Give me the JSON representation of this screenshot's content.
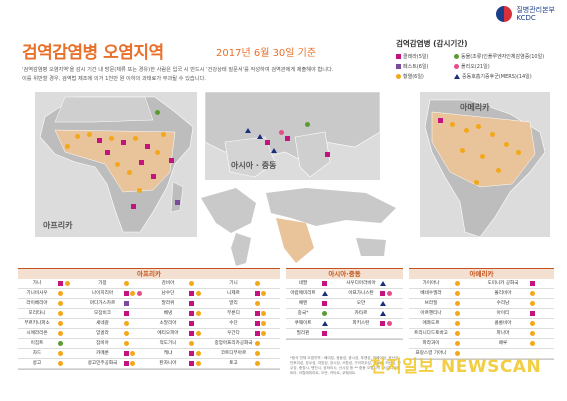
{
  "header": {
    "agency_line1": "질병관리본부",
    "agency_line2": "KCDC",
    "title": "검역감염병 오염지역",
    "subtitle": "2017년 6월 30일 기준",
    "desc_line1": "'검역감염병 오염지역'을 감시 기간 내 방문(체류 또는 경유)한 사람은 입국 시 반드시 '건강상태 질문서'를 작성하여 검역관에게 제출해야 합니다.",
    "desc_line2": "이를 위반할 경우, 검역법 제조에 의거 1천만 원 이하의 과태료가 부과될 수 있습니다."
  },
  "legend": {
    "title": "검역감염병 (감시기간)",
    "items": [
      {
        "label": "콜레라(5일)",
        "color": "#c4127e",
        "shape": "square"
      },
      {
        "label": "동물(조류)인플루엔자인체감염증(10일)",
        "color": "#5a9c2f",
        "shape": "circle"
      },
      {
        "label": "페스트(6일)",
        "color": "#7a4a9c",
        "shape": "square"
      },
      {
        "label": "폴리오(21일)",
        "color": "#e84a8a",
        "shape": "circle"
      },
      {
        "label": "황열(6일)",
        "color": "#f3a81a",
        "shape": "circle"
      },
      {
        "label": "중동호흡기증후군(MERS)(14일)",
        "color": "#1a2f7a",
        "shape": "triangle"
      }
    ]
  },
  "maps": {
    "africa_label": "아프리카",
    "me_label": "아시아 · 중동",
    "americas_label": "아메리카"
  },
  "tables": {
    "africa": {
      "header": "아프리카",
      "rows": [
        [
          {
            "name": "가나",
            "marks": [
              "square:#c4127e",
              "circle:#f3a81a"
            ]
          },
          {
            "name": "가봉",
            "marks": [
              "circle:#f3a81a"
            ]
          },
          {
            "name": "감비아",
            "marks": [
              "circle:#f3a81a"
            ]
          },
          {
            "name": "기니",
            "marks": [
              "circle:#f3a81a"
            ]
          }
        ],
        [
          {
            "name": "기니비사우",
            "marks": [
              "circle:#f3a81a"
            ]
          },
          {
            "name": "나이지리아",
            "marks": [
              "square:#c4127e",
              "circle:#f3a81a",
              "circle:#e84a8a"
            ]
          },
          {
            "name": "남수단",
            "marks": [
              "square:#c4127e",
              "circle:#f3a81a"
            ]
          },
          {
            "name": "니제르",
            "marks": [
              "square:#c4127e",
              "circle:#f3a81a"
            ]
          }
        ],
        [
          {
            "name": "라이베리아",
            "marks": [
              "circle:#f3a81a"
            ]
          },
          {
            "name": "마다가스카르",
            "marks": [
              "square:#7a4a9c"
            ]
          },
          {
            "name": "말라위",
            "marks": [
              "square:#c4127e"
            ]
          },
          {
            "name": "말리",
            "marks": [
              "circle:#f3a81a"
            ]
          }
        ],
        [
          {
            "name": "모리타니",
            "marks": [
              "circle:#f3a81a"
            ]
          },
          {
            "name": "모잠비크",
            "marks": [
              "square:#c4127e"
            ]
          },
          {
            "name": "베냉",
            "marks": [
              "square:#c4127e",
              "circle:#f3a81a"
            ]
          },
          {
            "name": "부룬디",
            "marks": [
              "square:#c4127e",
              "circle:#f3a81a"
            ]
          }
        ],
        [
          {
            "name": "부르키나파소",
            "marks": [
              "circle:#f3a81a"
            ]
          },
          {
            "name": "세네갈",
            "marks": [
              "circle:#f3a81a"
            ]
          },
          {
            "name": "소말리아",
            "marks": [
              "square:#c4127e"
            ]
          },
          {
            "name": "수단",
            "marks": [
              "square:#c4127e",
              "circle:#f3a81a"
            ]
          }
        ],
        [
          {
            "name": "시에라리온",
            "marks": [
              "circle:#f3a81a"
            ]
          },
          {
            "name": "앙골라",
            "marks": [
              "circle:#f3a81a"
            ]
          },
          {
            "name": "에티오피아",
            "marks": [
              "square:#c4127e",
              "circle:#f3a81a"
            ]
          },
          {
            "name": "우간다",
            "marks": [
              "square:#c4127e",
              "circle:#f3a81a"
            ]
          }
        ],
        [
          {
            "name": "이집트",
            "marks": [
              "circle:#5a9c2f"
            ]
          },
          {
            "name": "잠비아",
            "marks": [
              "circle:#f3a81a"
            ]
          },
          {
            "name": "적도기니",
            "marks": [
              "circle:#f3a81a"
            ]
          },
          {
            "name": "중앙아프리카공화국",
            "marks": [
              "circle:#f3a81a"
            ]
          }
        ],
        [
          {
            "name": "차드",
            "marks": [
              "circle:#f3a81a"
            ]
          },
          {
            "name": "카메룬",
            "marks": [
              "square:#c4127e",
              "circle:#f3a81a"
            ]
          },
          {
            "name": "케냐",
            "marks": [
              "square:#c4127e",
              "circle:#f3a81a"
            ]
          },
          {
            "name": "코트디부아르",
            "marks": [
              "circle:#f3a81a"
            ]
          }
        ],
        [
          {
            "name": "콩고",
            "marks": [
              "circle:#f3a81a"
            ]
          },
          {
            "name": "콩고민주공화국",
            "marks": [
              "square:#c4127e",
              "circle:#f3a81a"
            ]
          },
          {
            "name": "탄자니아",
            "marks": [
              "square:#c4127e",
              "circle:#f3a81a"
            ]
          },
          {
            "name": "토고",
            "marks": [
              "circle:#f3a81a"
            ]
          }
        ]
      ]
    },
    "me": {
      "header": "아시아·중동",
      "rows": [
        [
          {
            "name": "네팔",
            "marks": [
              "square:#c4127e"
            ]
          },
          {
            "name": "사우디아라비아",
            "marks": [
              "triangle:#1a2f7a"
            ]
          }
        ],
        [
          {
            "name": "아랍에미리트",
            "marks": [
              "triangle:#1a2f7a"
            ]
          },
          {
            "name": "아프가니스탄",
            "marks": [
              "square:#c4127e",
              "circle:#e84a8a"
            ]
          }
        ],
        [
          {
            "name": "예멘",
            "marks": [
              "square:#c4127e"
            ]
          },
          {
            "name": "오만",
            "marks": [
              "triangle:#1a2f7a"
            ]
          }
        ],
        [
          {
            "name": "중국*",
            "marks": [
              "circle:#5a9c2f"
            ]
          },
          {
            "name": "카타르",
            "marks": [
              "triangle:#1a2f7a"
            ]
          }
        ],
        [
          {
            "name": "쿠웨이트",
            "marks": [
              "triangle:#1a2f7a"
            ]
          },
          {
            "name": "파키스탄",
            "marks": [
              "square:#c4127e",
              "circle:#e84a8a"
            ]
          }
        ],
        [
          {
            "name": "필리핀",
            "marks": [
              "square:#c4127e"
            ]
          },
          {
            "name": "",
            "marks": []
          }
        ]
      ]
    },
    "americas": {
      "header": "아메리카",
      "rows": [
        [
          {
            "name": "가이아나",
            "marks": [
              "circle:#f3a81a"
            ]
          },
          {
            "name": "도미니카 공화국",
            "marks": [
              "square:#c4127e"
            ]
          }
        ],
        [
          {
            "name": "베네수엘라",
            "marks": [
              "circle:#f3a81a"
            ]
          },
          {
            "name": "볼리비아",
            "marks": [
              "circle:#f3a81a"
            ]
          }
        ],
        [
          {
            "name": "브라질",
            "marks": [
              "circle:#f3a81a"
            ]
          },
          {
            "name": "수리남",
            "marks": [
              "circle:#f3a81a"
            ]
          }
        ],
        [
          {
            "name": "아르헨티나",
            "marks": [
              "circle:#f3a81a"
            ]
          },
          {
            "name": "아이티",
            "marks": [
              "square:#c4127e"
            ]
          }
        ],
        [
          {
            "name": "에콰도르",
            "marks": [
              "circle:#f3a81a"
            ]
          },
          {
            "name": "콜롬비아",
            "marks": [
              "circle:#f3a81a"
            ]
          }
        ],
        [
          {
            "name": "트리니다드토바고",
            "marks": [
              "circle:#f3a81a"
            ]
          },
          {
            "name": "파나마",
            "marks": [
              "circle:#f3a81a"
            ]
          }
        ],
        [
          {
            "name": "파라과이",
            "marks": [
              "circle:#f3a81a"
            ]
          },
          {
            "name": "페루",
            "marks": [
              "circle:#f3a81a"
            ]
          }
        ],
        [
          {
            "name": "프랑스령 기아나",
            "marks": [
              "circle:#f3a81a"
            ]
          },
          {
            "name": "",
            "marks": []
          }
        ]
      ]
    }
  },
  "notes": {
    "text": "*중국 전체 오염지역 : 베이징, 광둥성, 광시성, 푸젠성, 허베이성, 후난성, 안후이성, 장쑤성, 저장성, 장시성, 쓰촨성, 구이저우성, 산둥성, 허난성, 간쑤성, 충칭시, 톈진시, 상하이시, 산시성 등 ** 중동 오염지역 : 사우디아라비아, 아랍에미리트, 오만, 카타르, 쿠웨이트"
  },
  "watermark": {
    "text": "천지일보 NEWSCAN"
  }
}
